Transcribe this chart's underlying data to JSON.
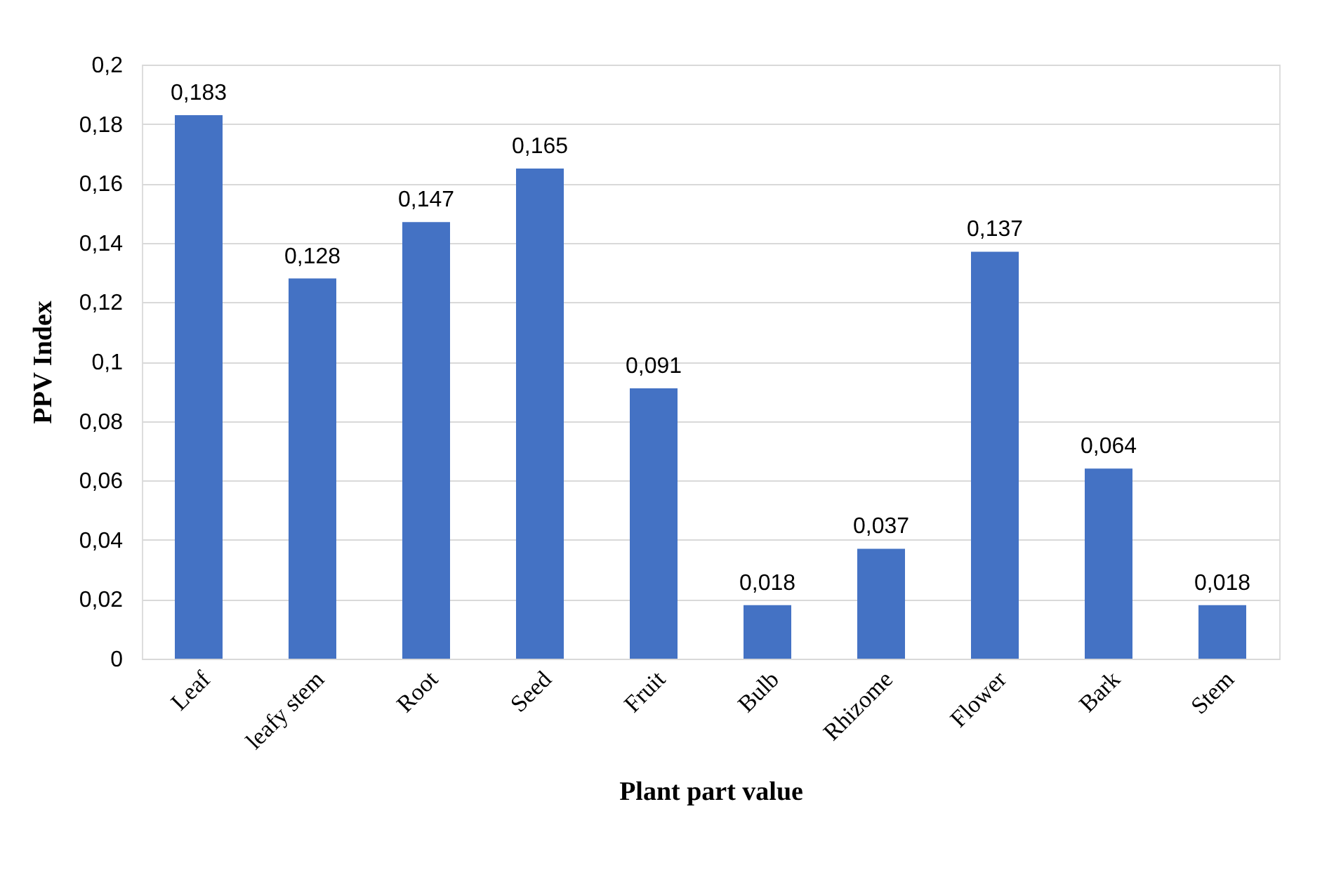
{
  "chart_data": {
    "type": "bar",
    "xlabel": "Plant part value",
    "ylabel": "PPV Index",
    "categories": [
      "Leaf",
      "leafy stem",
      "Root",
      "Seed",
      "Fruit",
      "Bulb",
      "Rhizome",
      "Flower",
      "Bark",
      "Stem"
    ],
    "values": [
      0.183,
      0.128,
      0.147,
      0.165,
      0.091,
      0.018,
      0.037,
      0.137,
      0.064,
      0.018
    ],
    "value_labels": [
      "0,183",
      "0,128",
      "0,147",
      "0,165",
      "0,091",
      "0,018",
      "0,037",
      "0,137",
      "0,064",
      "0,018"
    ],
    "color": "#4472c4",
    "ylim": [
      0,
      0.2
    ],
    "yticks": [
      0,
      {
        "value": 0.02,
        "label": "0,02"
      },
      {
        "value": 0.04,
        "label": "0,04"
      },
      {
        "value": 0.06,
        "label": "0,06"
      },
      {
        "value": 0.08,
        "label": "0,08"
      },
      {
        "value": 0.1,
        "label": "0,1"
      },
      {
        "value": 0.12,
        "label": "0,12"
      },
      {
        "value": 0.14,
        "label": "0,14"
      },
      {
        "value": 0.16,
        "label": "0,16"
      },
      {
        "value": 0.18,
        "label": "0,18"
      },
      {
        "value": 0.2,
        "label": "0,2"
      }
    ],
    "grid": "y"
  }
}
